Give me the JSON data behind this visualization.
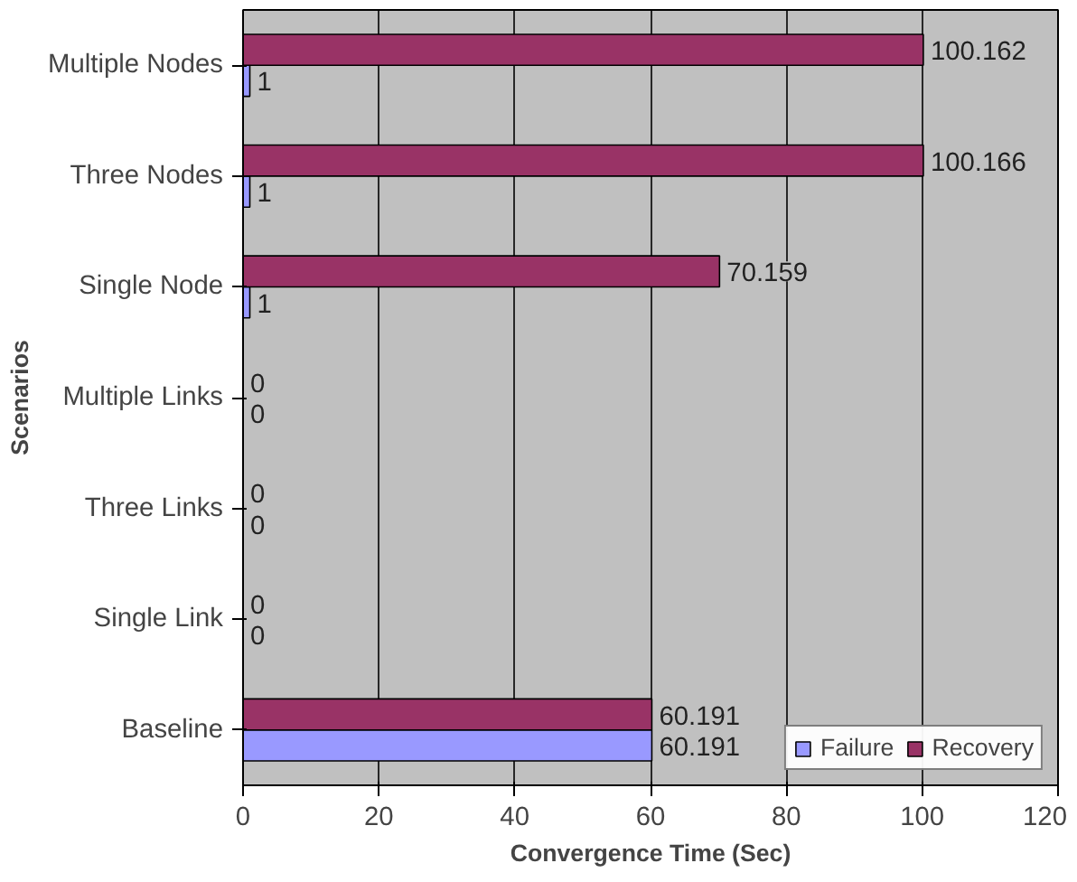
{
  "chart_data": {
    "type": "bar",
    "orientation": "horizontal",
    "xlabel": "Convergence Time (Sec)",
    "ylabel": "Scenarios",
    "categories": [
      "Multiple Nodes",
      "Three Nodes",
      "Single Node",
      "Multiple Links",
      "Three Links",
      "Single Link",
      "Baseline"
    ],
    "series": [
      {
        "name": "Failure",
        "color": "#9999ff",
        "values": [
          1,
          1,
          1,
          0,
          0,
          0,
          60.191
        ]
      },
      {
        "name": "Recovery",
        "color": "#993366",
        "values": [
          100.162,
          100.166,
          70.159,
          0,
          0,
          0,
          60.191
        ]
      }
    ],
    "xlim": [
      0,
      120
    ],
    "xticks": [
      0,
      20,
      40,
      60,
      80,
      100,
      120
    ],
    "grid": "x",
    "legend": "bottom right",
    "data_labels": true
  }
}
